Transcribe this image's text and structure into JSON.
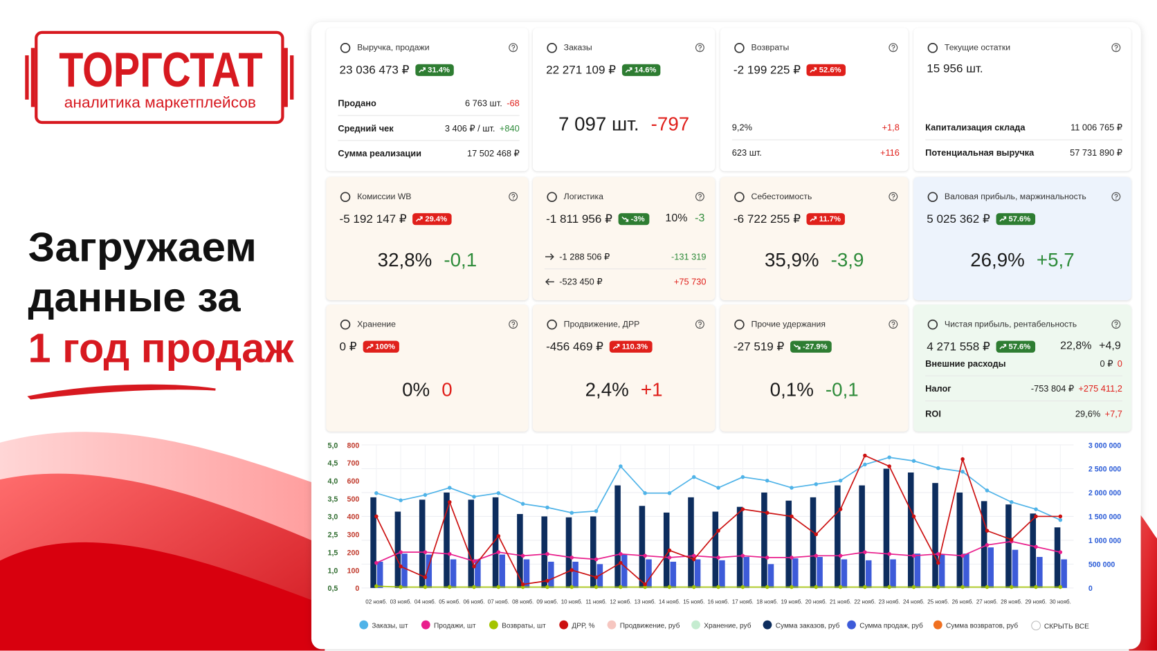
{
  "logo": {
    "name": "ТОРГСТАТ",
    "tagline": "аналитика маркетплейсов"
  },
  "headline": [
    "Загружаем",
    "данные за",
    "1 год продаж"
  ],
  "cards": [
    {
      "title": "Выручка, продажи",
      "bg": "white",
      "value": "23 036 473 ₽",
      "badge": {
        "text": "31.4%",
        "color": "green"
      },
      "rows": [
        {
          "label": "Продано",
          "value": "6 763 шт.",
          "delta": "-68",
          "color": "red"
        },
        {
          "label": "Средний чек",
          "value": "3 406 ₽ / шт.",
          "delta": "+840",
          "color": "green"
        },
        {
          "label": "Сумма реализации",
          "value": "17 502 468 ₽"
        }
      ]
    },
    {
      "title": "Заказы",
      "bg": "white",
      "value": "22 271 109 ₽",
      "badge": {
        "text": "14.6%",
        "color": "green"
      },
      "big": {
        "value": "7 097 шт.",
        "delta": "-797",
        "color": "red"
      }
    },
    {
      "title": "Возвраты",
      "bg": "white",
      "value": "-2 199 225 ₽",
      "badge": {
        "text": "52.6%",
        "color": "red"
      },
      "rows": [
        {
          "value": "9,2%",
          "delta": "+1,8",
          "color": "red"
        },
        {
          "value": "623 шт.",
          "delta": "+116",
          "color": "red"
        }
      ]
    },
    {
      "title": "Текущие остатки",
      "bg": "white",
      "value": "15 956 шт.",
      "rows": [
        {
          "label": "Капитализация склада",
          "value": "11 006 765 ₽"
        },
        {
          "label": "Потенциальная выручка",
          "value": "57 731 890 ₽"
        }
      ]
    },
    {
      "title": "Комиссии WB",
      "bg": "cream",
      "value": "-5 192 147 ₽",
      "badge": {
        "text": "29.4%",
        "color": "red"
      },
      "big": {
        "value": "32,8%",
        "delta": "-0,1",
        "color": "green"
      }
    },
    {
      "title": "Логистика",
      "bg": "cream",
      "value": "-1 811 956 ₽",
      "badge": {
        "text": "-3%",
        "color": "green"
      },
      "extra": {
        "value": "10%",
        "delta": "-3",
        "color": "green"
      },
      "rows": [
        {
          "arrow": "right",
          "value": "-1 288 506 ₽",
          "delta": "-131 319",
          "color": "green"
        },
        {
          "arrow": "left",
          "value": "-523 450 ₽",
          "delta": "+75 730",
          "color": "red"
        }
      ]
    },
    {
      "title": "Себестоимость",
      "bg": "cream",
      "value": "-6 722 255 ₽",
      "badge": {
        "text": "11.7%",
        "color": "red"
      },
      "big": {
        "value": "35,9%",
        "delta": "-3,9",
        "color": "green"
      }
    },
    {
      "title": "Валовая прибыль, маржинальность",
      "bg": "blue",
      "value": "5 025 362 ₽",
      "badge": {
        "text": "57.6%",
        "color": "green"
      },
      "big": {
        "value": "26,9%",
        "delta": "+5,7",
        "color": "green"
      }
    },
    {
      "title": "Хранение",
      "bg": "cream",
      "value": "0 ₽",
      "badge": {
        "text": "100%",
        "color": "red"
      },
      "big": {
        "value": "0%",
        "delta": "0",
        "color": "red"
      }
    },
    {
      "title": "Продвижение, ДРР",
      "bg": "cream",
      "value": "-456 469 ₽",
      "badge": {
        "text": "110.3%",
        "color": "red"
      },
      "big": {
        "value": "2,4%",
        "delta": "+1",
        "color": "red"
      }
    },
    {
      "title": "Прочие удержания",
      "bg": "cream",
      "value": "-27 519 ₽",
      "badge": {
        "text": "-27.9%",
        "color": "green"
      },
      "big": {
        "value": "0,1%",
        "delta": "-0,1",
        "color": "green"
      }
    },
    {
      "title": "Чистая прибыль, рентабельность",
      "bg": "green",
      "value": "4 271 558 ₽",
      "badge": {
        "text": "57.6%",
        "color": "green"
      },
      "extra": {
        "value": "22,8%",
        "delta": "+4,9"
      },
      "rows": [
        {
          "label": "Внешние расходы",
          "value": "0 ₽",
          "delta": "0",
          "color": "red"
        },
        {
          "label": "Налог",
          "value": "-753 804 ₽",
          "delta": "+275 411,2",
          "color": "red"
        },
        {
          "label": "ROI",
          "value": "29,6%",
          "delta": "+7,7",
          "color": "red"
        }
      ]
    }
  ],
  "chart_data": {
    "type": "combo",
    "categories": [
      "02 нояб.",
      "03 нояб.",
      "04 нояб.",
      "05 нояб.",
      "06 нояб.",
      "07 нояб.",
      "08 нояб.",
      "09 нояб.",
      "10 нояб.",
      "11 нояб.",
      "12 нояб.",
      "13 нояб.",
      "14 нояб.",
      "15 нояб.",
      "16 нояб.",
      "17 нояб.",
      "18 нояб.",
      "19 нояб.",
      "20 нояб.",
      "21 нояб.",
      "22 нояб.",
      "23 нояб.",
      "24 нояб.",
      "25 нояб.",
      "26 нояб.",
      "27 нояб.",
      "28 нояб.",
      "29 нояб.",
      "30 нояб."
    ],
    "ylim": [
      0.5,
      5.0
    ],
    "yticks": [
      {
        "value": 0.5,
        "label": "0,5"
      },
      {
        "value": 1.0,
        "label": "1,0"
      },
      {
        "value": 1.5,
        "label": "1,5"
      },
      {
        "value": 2.5,
        "label": "2,5"
      },
      {
        "value": 3.0,
        "label": "3,0"
      },
      {
        "value": 3.5,
        "label": "3,5"
      },
      {
        "value": 4.0,
        "label": "4,0"
      },
      {
        "value": 4.5,
        "label": "4,5"
      },
      {
        "value": 5.0,
        "label": "5,0"
      }
    ],
    "y2lim": [
      0,
      800
    ],
    "y2ticks": [
      0,
      100,
      200,
      300,
      400,
      500,
      600,
      700,
      800
    ],
    "y3lim": [
      0,
      3000000
    ],
    "y3ticks": [
      0,
      {
        "value": 500000,
        "label": "500 000"
      },
      {
        "value": 1000000,
        "label": "1 000 000"
      },
      {
        "value": 1500000,
        "label": "1 500 000"
      },
      {
        "value": 2000000,
        "label": "2 000 000"
      },
      {
        "value": 2500000,
        "label": "2 500 000"
      },
      {
        "value": 3000000,
        "label": "3 000 000"
      }
    ],
    "grid": true,
    "series": [
      {
        "name": "Заказы, шт",
        "color": "#4fb3e8",
        "kind": "line",
        "axis": "y2",
        "values": [
          530,
          490,
          520,
          560,
          510,
          530,
          470,
          450,
          420,
          430,
          680,
          530,
          530,
          620,
          560,
          620,
          600,
          560,
          580,
          600,
          690,
          730,
          710,
          670,
          650,
          545,
          480,
          440,
          380
        ]
      },
      {
        "name": "Продажи, шт",
        "color": "#e91e8c",
        "kind": "line",
        "axis": "y2",
        "values": [
          140,
          200,
          200,
          190,
          150,
          200,
          180,
          190,
          170,
          160,
          190,
          180,
          170,
          180,
          170,
          180,
          170,
          170,
          180,
          180,
          200,
          190,
          180,
          190,
          180,
          240,
          260,
          230,
          200
        ]
      },
      {
        "name": "Возвраты, шт",
        "color": "#a4c400",
        "kind": "line",
        "axis": "y2",
        "values": [
          10,
          5,
          5,
          5,
          5,
          5,
          5,
          5,
          5,
          5,
          5,
          5,
          5,
          5,
          5,
          5,
          5,
          5,
          5,
          5,
          5,
          5,
          5,
          5,
          5,
          5,
          5,
          5,
          5
        ]
      },
      {
        "name": "ДРР, %",
        "color": "#cc1111",
        "kind": "line",
        "axis": "y",
        "values": [
          3.0,
          1.1,
          0.8,
          3.4,
          1.1,
          2.4,
          0.6,
          0.7,
          1.0,
          0.8,
          1.2,
          0.6,
          1.6,
          1.3,
          2.6,
          3.2,
          3.1,
          3.0,
          2.5,
          3.2,
          4.7,
          4.4,
          3.0,
          1.2,
          4.6,
          2.6,
          2.2,
          3.0,
          3.0
        ]
      },
      {
        "name": "Продвижение, руб",
        "color": "#f6c6c0"
      },
      {
        "name": "Хранение, руб",
        "color": "#c5ecd0"
      },
      {
        "name": "Сумма заказов, руб",
        "color": "#0d2d5e",
        "kind": "bar",
        "axis": "y3",
        "values": [
          1900000,
          1600000,
          1850000,
          2000000,
          1850000,
          1900000,
          1550000,
          1500000,
          1480000,
          1500000,
          2150000,
          1720000,
          1580000,
          1900000,
          1600000,
          1700000,
          2000000,
          1830000,
          1900000,
          2150000,
          2150000,
          2500000,
          2420000,
          2200000,
          2000000,
          1820000,
          1750000,
          1560000,
          1270000
        ]
      },
      {
        "name": "Сумма продаж, руб",
        "color": "#3d5bd9",
        "kind": "bar",
        "axis": "y3",
        "values": [
          550000,
          720000,
          700000,
          600000,
          600000,
          700000,
          600000,
          550000,
          550000,
          500000,
          700000,
          600000,
          550000,
          600000,
          580000,
          650000,
          500000,
          620000,
          650000,
          600000,
          580000,
          600000,
          720000,
          700000,
          720000,
          850000,
          800000,
          650000,
          600000
        ]
      },
      {
        "name": "Сумма возвратов, руб",
        "color": "#f07020"
      }
    ],
    "hide_all": "СКРЫТЬ ВСЕ"
  }
}
